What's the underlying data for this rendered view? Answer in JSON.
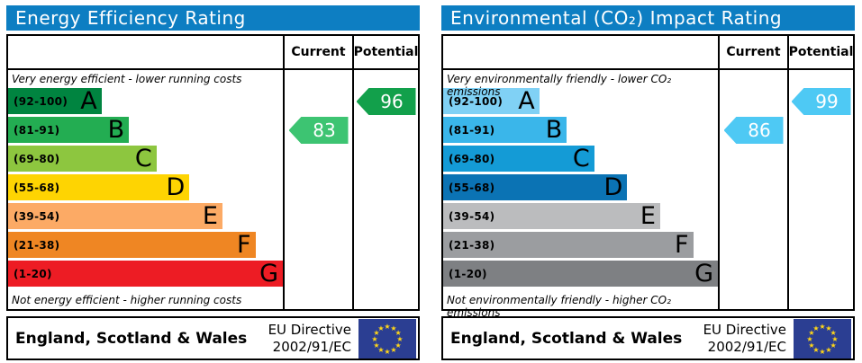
{
  "footer": {
    "region": "England, Scotland & Wales",
    "directive_line1": "EU Directive",
    "directive_line2": "2002/91/EC",
    "flag_bg": "#2b3e92",
    "star_color": "#ffd617"
  },
  "chart_data": [
    {
      "type": "rating-bands",
      "title": "Energy Efficiency Rating",
      "title_bg": "#0d7ec2",
      "columns": [
        "Current",
        "Potential"
      ],
      "top_caption": "Very energy efficient - lower running costs",
      "bottom_caption": "Not energy efficient - higher running costs",
      "bands": [
        {
          "label": "A",
          "range": "(92-100)",
          "range_min": 92,
          "range_max": 100,
          "color": "#008440",
          "width_pct": 34
        },
        {
          "label": "B",
          "range": "(81-91)",
          "range_min": 81,
          "range_max": 91,
          "color": "#23ad52",
          "width_pct": 44
        },
        {
          "label": "C",
          "range": "(69-80)",
          "range_min": 69,
          "range_max": 80,
          "color": "#8dc63f",
          "width_pct": 54
        },
        {
          "label": "D",
          "range": "(55-68)",
          "range_min": 55,
          "range_max": 68,
          "color": "#fed402",
          "width_pct": 66
        },
        {
          "label": "E",
          "range": "(39-54)",
          "range_min": 39,
          "range_max": 54,
          "color": "#fcaa65",
          "width_pct": 78
        },
        {
          "label": "F",
          "range": "(21-38)",
          "range_min": 21,
          "range_max": 38,
          "color": "#ef8623",
          "width_pct": 90
        },
        {
          "label": "G",
          "range": "(1-20)",
          "range_min": 1,
          "range_max": 20,
          "color": "#ed1c24",
          "width_pct": 100
        }
      ],
      "current": {
        "value": 83,
        "band": "B",
        "color": "#3dc472"
      },
      "potential": {
        "value": 96,
        "band": "A",
        "color": "#12a04b"
      }
    },
    {
      "type": "rating-bands",
      "title": "Environmental (CO₂) Impact Rating",
      "title_bg": "#0d7ec2",
      "columns": [
        "Current",
        "Potential"
      ],
      "top_caption": "Very environmentally friendly - lower CO₂ emissions",
      "bottom_caption": "Not environmentally friendly - higher CO₂ emissions",
      "bands": [
        {
          "label": "A",
          "range": "(92-100)",
          "range_min": 92,
          "range_max": 100,
          "color": "#80d1f5",
          "width_pct": 35
        },
        {
          "label": "B",
          "range": "(81-91)",
          "range_min": 81,
          "range_max": 91,
          "color": "#3ab6ea",
          "width_pct": 45
        },
        {
          "label": "C",
          "range": "(69-80)",
          "range_min": 69,
          "range_max": 80,
          "color": "#149bd6",
          "width_pct": 55
        },
        {
          "label": "D",
          "range": "(55-68)",
          "range_min": 55,
          "range_max": 68,
          "color": "#0b73b4",
          "width_pct": 67
        },
        {
          "label": "E",
          "range": "(39-54)",
          "range_min": 39,
          "range_max": 54,
          "color": "#bbbcbe",
          "width_pct": 79
        },
        {
          "label": "F",
          "range": "(21-38)",
          "range_min": 21,
          "range_max": 38,
          "color": "#9b9da0",
          "width_pct": 91
        },
        {
          "label": "G",
          "range": "(1-20)",
          "range_min": 1,
          "range_max": 20,
          "color": "#7e8083",
          "width_pct": 100
        }
      ],
      "current": {
        "value": 86,
        "band": "B",
        "color": "#4ec9f4"
      },
      "potential": {
        "value": 99,
        "band": "A",
        "color": "#4ec9f4"
      }
    }
  ]
}
